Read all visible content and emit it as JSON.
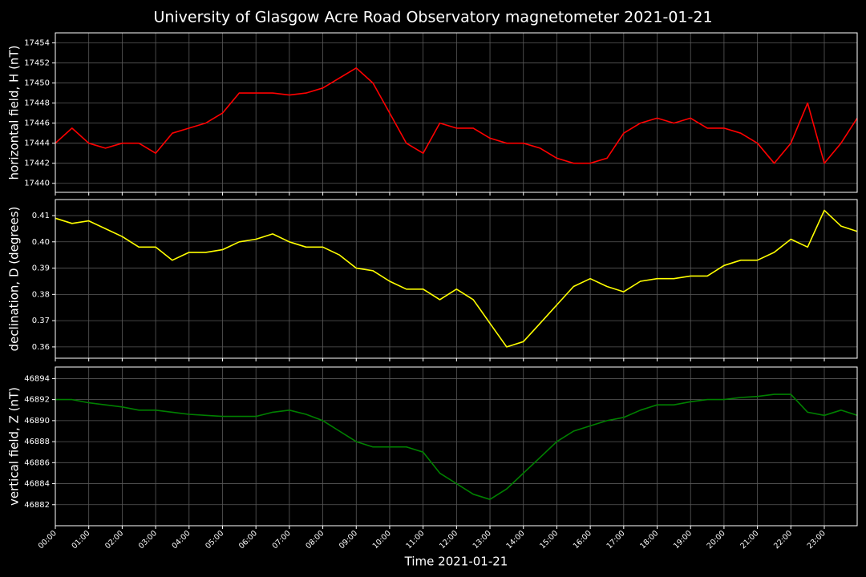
{
  "chart_data": [
    {
      "type": "line",
      "title": "University of Glasgow Acre Road Observatory magnetometer 2021-01-21",
      "ylabel": "horizontal field, H (nT)",
      "color": "#ff0000",
      "x": [
        "00:00",
        "00:30",
        "01:00",
        "01:30",
        "02:00",
        "02:30",
        "03:00",
        "03:30",
        "04:00",
        "04:30",
        "05:00",
        "05:30",
        "06:00",
        "06:30",
        "07:00",
        "07:30",
        "08:00",
        "08:30",
        "09:00",
        "09:30",
        "10:00",
        "10:30",
        "11:00",
        "11:30",
        "12:00",
        "12:30",
        "13:00",
        "13:30",
        "14:00",
        "14:30",
        "15:00",
        "15:30",
        "16:00",
        "16:30",
        "17:00",
        "17:30",
        "18:00",
        "18:30",
        "19:00",
        "19:30",
        "20:00",
        "20:30",
        "21:00",
        "21:30",
        "22:00",
        "22:30",
        "23:00",
        "23:30",
        "23:59"
      ],
      "values": [
        17444,
        17445.5,
        17444,
        17443.5,
        17444,
        17444,
        17443,
        17445,
        17445.5,
        17446,
        17447,
        17449,
        17449,
        17449,
        17448.8,
        17449,
        17449.5,
        17450.5,
        17451.5,
        17450,
        17447,
        17444,
        17443,
        17446,
        17445.5,
        17445.5,
        17444.5,
        17444,
        17444,
        17443.5,
        17442.5,
        17442,
        17442,
        17442.5,
        17445,
        17446,
        17446.5,
        17446,
        17446.5,
        17445.5,
        17445.5,
        17445,
        17444,
        17442,
        17444,
        17448,
        17442,
        17444,
        17446.5
      ],
      "xlim": [
        "00:00",
        "23:59"
      ],
      "ylim": [
        17439.1,
        17455.0
      ],
      "yticks": [
        17440,
        17442,
        17444,
        17446,
        17448,
        17450,
        17452,
        17454
      ],
      "grid": true
    },
    {
      "type": "line",
      "ylabel": "declination, D (degrees)",
      "color": "#ffff00",
      "x": [
        "00:00",
        "00:30",
        "01:00",
        "01:30",
        "02:00",
        "02:30",
        "03:00",
        "03:30",
        "04:00",
        "04:30",
        "05:00",
        "05:30",
        "06:00",
        "06:30",
        "07:00",
        "07:30",
        "08:00",
        "08:30",
        "09:00",
        "09:30",
        "10:00",
        "10:30",
        "11:00",
        "11:30",
        "12:00",
        "12:30",
        "13:00",
        "13:30",
        "14:00",
        "14:30",
        "15:00",
        "15:30",
        "16:00",
        "16:30",
        "17:00",
        "17:30",
        "18:00",
        "18:30",
        "19:00",
        "19:30",
        "20:00",
        "20:30",
        "21:00",
        "21:30",
        "22:00",
        "22:30",
        "23:00",
        "23:30",
        "23:59"
      ],
      "values": [
        0.409,
        0.407,
        0.408,
        0.405,
        0.402,
        0.398,
        0.398,
        0.393,
        0.396,
        0.396,
        0.397,
        0.4,
        0.401,
        0.403,
        0.4,
        0.398,
        0.398,
        0.395,
        0.39,
        0.389,
        0.385,
        0.382,
        0.382,
        0.378,
        0.382,
        0.378,
        0.369,
        0.36,
        0.362,
        0.369,
        0.376,
        0.383,
        0.386,
        0.383,
        0.381,
        0.385,
        0.386,
        0.386,
        0.387,
        0.387,
        0.391,
        0.393,
        0.393,
        0.396,
        0.401,
        0.398,
        0.412,
        0.406,
        0.404
      ],
      "xlim": [
        "00:00",
        "23:59"
      ],
      "ylim": [
        0.3557,
        0.4161
      ],
      "yticks": [
        0.36,
        0.37,
        0.38,
        0.39,
        {
          "value": 0.4,
          "label": "0.40"
        },
        0.41
      ],
      "grid": true
    },
    {
      "type": "line",
      "ylabel": "vertical field, Z (nT)",
      "color": "#008000",
      "xlabel": "Time 2021-01-21",
      "x": [
        "00:00",
        "00:30",
        "01:00",
        "01:30",
        "02:00",
        "02:30",
        "03:00",
        "03:30",
        "04:00",
        "04:30",
        "05:00",
        "05:30",
        "06:00",
        "06:30",
        "07:00",
        "07:30",
        "08:00",
        "08:30",
        "09:00",
        "09:30",
        "10:00",
        "10:30",
        "11:00",
        "11:30",
        "12:00",
        "12:30",
        "13:00",
        "13:30",
        "14:00",
        "14:30",
        "15:00",
        "15:30",
        "16:00",
        "16:30",
        "17:00",
        "17:30",
        "18:00",
        "18:30",
        "19:00",
        "19:30",
        "20:00",
        "20:30",
        "21:00",
        "21:30",
        "22:00",
        "22:30",
        "23:00",
        "23:30",
        "23:59"
      ],
      "values": [
        46892,
        46892,
        46891.7,
        46891.5,
        46891.3,
        46891,
        46891,
        46890.8,
        46890.6,
        46890.5,
        46890.4,
        46890.4,
        46890.4,
        46890.8,
        46891,
        46890.6,
        46890,
        46889,
        46888,
        46887.5,
        46887.5,
        46887.5,
        46887,
        46885,
        46884,
        46883,
        46882.5,
        46883.5,
        46885,
        46886.5,
        46888,
        46889,
        46889.5,
        46890,
        46890.3,
        46891,
        46891.5,
        46891.5,
        46891.8,
        46892,
        46892,
        46892.2,
        46892.3,
        46892.5,
        46892.5,
        46890.8,
        46890.5,
        46891,
        46890.5
      ],
      "xlim": [
        "00:00",
        "23:59"
      ],
      "ylim": [
        46880.0,
        46895.1
      ],
      "yticks": [
        46882,
        46884,
        46886,
        46888,
        46890,
        46892,
        46894
      ],
      "xticks": [
        "00:00",
        "01:00",
        "02:00",
        "03:00",
        "04:00",
        "05:00",
        "06:00",
        "07:00",
        "08:00",
        "09:00",
        "10:00",
        "11:00",
        "12:00",
        "13:00",
        "14:00",
        "15:00",
        "16:00",
        "17:00",
        "18:00",
        "19:00",
        "20:00",
        "21:00",
        "22:00",
        "23:00"
      ],
      "grid": true
    }
  ]
}
